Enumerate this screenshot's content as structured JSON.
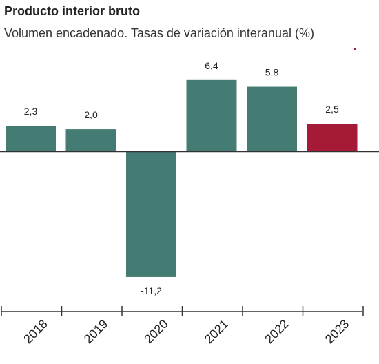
{
  "title": "Producto interior bruto",
  "subtitle": "Volumen encadenado. Tasas de variación interanual (%)",
  "chart_data": {
    "type": "bar",
    "title": "Producto interior bruto",
    "subtitle": "Volumen encadenado. Tasas de variación interanual (%)",
    "categories": [
      "2018",
      "2019",
      "2020",
      "2021",
      "2022",
      "2023"
    ],
    "values": [
      2.3,
      2.0,
      -11.2,
      6.4,
      5.8,
      2.5
    ],
    "value_labels": [
      "2,3",
      "2,0",
      "-11,2",
      "6,4",
      "5,8",
      "2,5"
    ],
    "colors": [
      "#447b72",
      "#447b72",
      "#447b72",
      "#447b72",
      "#447b72",
      "#a51b37"
    ],
    "ylim": [
      -13,
      8
    ],
    "grid": false,
    "legend": "none"
  }
}
